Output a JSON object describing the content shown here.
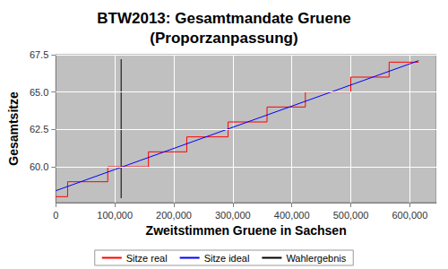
{
  "chart_data": {
    "type": "line",
    "title": "BTW2013: Gesamtmandate Gruene\n(Proporzanpassung)",
    "xlabel": "Zweitstimmen Gruene in Sachsen",
    "ylabel": "Gesamtsitze",
    "xlim": [
      0,
      645000
    ],
    "xticks": [
      0,
      {
        "value": 100000,
        "label": "100,000"
      },
      {
        "value": 200000,
        "label": "200,000"
      },
      {
        "value": 300000,
        "label": "300,000"
      },
      {
        "value": 400000,
        "label": "400,000"
      },
      {
        "value": 500000,
        "label": "500,000"
      },
      {
        "value": 600000,
        "label": "600,000"
      }
    ],
    "ylim": [
      57.6,
      67.5
    ],
    "yticks": [
      {
        "value": 60,
        "label": "60.0"
      },
      62.5,
      {
        "value": 65,
        "label": "65.0"
      },
      67.5
    ],
    "grid": true,
    "legend": "bottom",
    "series": [
      {
        "name": "Sitze real",
        "color": "#ff0000",
        "type": "step",
        "x": [
          0,
          20000,
          88000,
          157000,
          222000,
          292000,
          358000,
          423000,
          500000,
          565000,
          615000
        ],
        "values": [
          58,
          59,
          60,
          61,
          62,
          63,
          64,
          65,
          66,
          67,
          67
        ]
      },
      {
        "name": "Sitze ideal",
        "color": "#0000ff",
        "type": "line",
        "x": [
          0,
          615000
        ],
        "values": [
          58.4,
          67.1
        ]
      },
      {
        "name": "Wahlergebnis",
        "color": "#000000",
        "type": "line",
        "x": [
          110700,
          110700
        ],
        "values": [
          57.9,
          67.2
        ]
      }
    ]
  }
}
